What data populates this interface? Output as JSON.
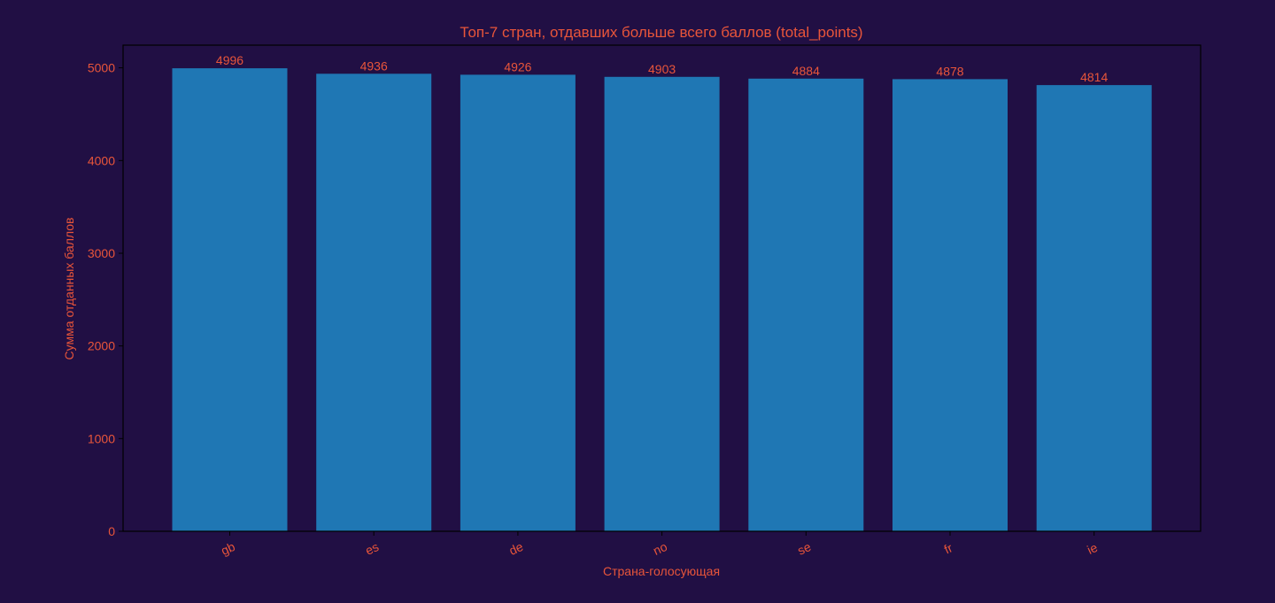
{
  "colors": {
    "background": "#210f44",
    "bar": "#1f77b4",
    "text": "#e8553a",
    "axis": "#000000"
  },
  "chart_data": {
    "type": "bar",
    "title": "Топ-7 стран, отдавших больше всего баллов (total_points)",
    "xlabel": "Страна-голосующая",
    "ylabel": "Сумма отданных баллов",
    "categories": [
      "gb",
      "es",
      "de",
      "no",
      "se",
      "fr",
      "ie"
    ],
    "values": [
      4996,
      4936,
      4926,
      4903,
      4884,
      4878,
      4814
    ],
    "data_labels": [
      "4996",
      "4936",
      "4926",
      "4903",
      "4884",
      "4878",
      "4814"
    ],
    "ylim": [
      0,
      5245
    ],
    "yticks": [
      0,
      1000,
      2000,
      3000,
      4000,
      5000
    ],
    "ytick_labels": [
      "0",
      "1000",
      "2000",
      "3000",
      "4000",
      "5000"
    ],
    "grid": false,
    "legend": "none"
  }
}
